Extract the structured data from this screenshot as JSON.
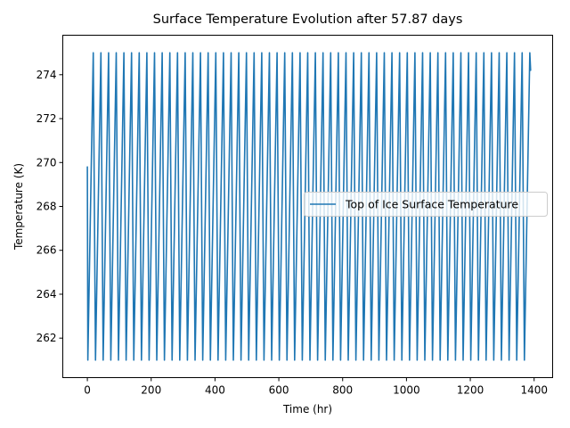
{
  "chart_data": {
    "type": "line",
    "title": "Surface Temperature Evolution after 57.87 days",
    "xlabel": "Time (hr)",
    "ylabel": "Temperature (K)",
    "xlim": [
      -77,
      1458
    ],
    "ylim": [
      260.2,
      275.8
    ],
    "xticks": [
      0,
      200,
      400,
      600,
      800,
      1000,
      1200,
      1400
    ],
    "yticks": [
      262,
      264,
      266,
      268,
      270,
      272,
      274
    ],
    "xtick_labels": [
      "0",
      "200",
      "400",
      "600",
      "800",
      "1000",
      "1200",
      "1400"
    ],
    "ytick_labels": [
      "262",
      "264",
      "266",
      "268",
      "270",
      "272",
      "274"
    ],
    "grid": false,
    "legend_position": "center-right",
    "colors": {
      "series": "#1f77b4",
      "axes": "#000000",
      "legend_border": "#cccccc"
    },
    "series": [
      {
        "name": "Top of Ice Surface Temperature",
        "shape": "daily-cycle",
        "x_range": [
          0,
          1389
        ],
        "start_value": 269.8,
        "min_value": 261.0,
        "max_value": 275.0,
        "end_value": 274.2,
        "period_hr": 24,
        "first_min_hr": 1.5,
        "first_max_hr": 18.5,
        "min_hour_of_cycle": 1.5,
        "max_hour_of_cycle": 18.5
      }
    ]
  }
}
